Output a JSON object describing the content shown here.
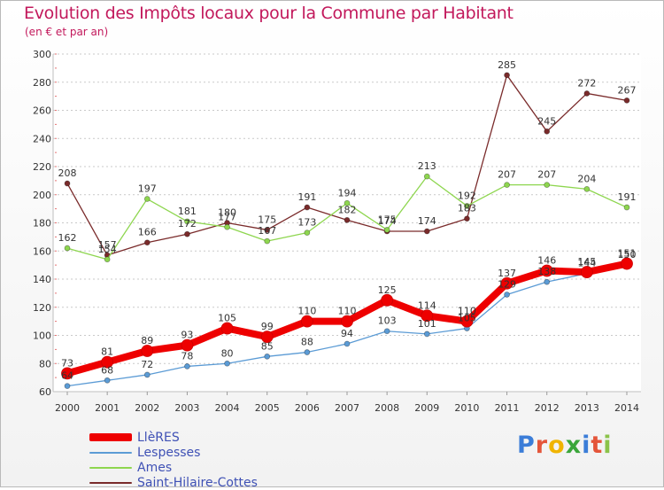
{
  "title": "Evolution des Impôts locaux pour la Commune par Habitant",
  "subtitle": "(en € et par an)",
  "logo": {
    "letters": [
      "P",
      "r",
      "o",
      "x",
      "i",
      "t",
      "i"
    ],
    "colors": [
      "#3b7dd8",
      "#e4553a",
      "#f0b400",
      "#3aa63a",
      "#3b7dd8",
      "#e4553a",
      "#8bc34a"
    ]
  },
  "chart_data": {
    "type": "line",
    "x": [
      "2000",
      "2001",
      "2002",
      "2003",
      "2004",
      "2005",
      "2006",
      "2007",
      "2008",
      "2009",
      "2010",
      "2011",
      "2012",
      "2013",
      "2014"
    ],
    "ylim": [
      60,
      300
    ],
    "yticks": [
      "60",
      "80",
      "100",
      "120",
      "140",
      "160",
      "180",
      "200",
      "220",
      "240",
      "260",
      "280",
      "300"
    ],
    "grid": "horizontal dashed",
    "legend_position": "bottom-left",
    "series": [
      {
        "name": "LlèRES",
        "color": "#ee0000",
        "values": [
          73,
          81,
          89,
          93,
          105,
          99,
          110,
          110,
          125,
          114,
          110,
          137,
          146,
          145,
          151
        ],
        "labels": [
          "73",
          "81",
          "89",
          "93",
          "105",
          "99",
          "110",
          "110",
          "125",
          "114",
          "110",
          "137",
          "146",
          "145",
          "151"
        ]
      },
      {
        "name": "Lespesses",
        "color": "#5b9bd5",
        "values": [
          64,
          68,
          72,
          78,
          80,
          85,
          88,
          94,
          103,
          101,
          105,
          129,
          138,
          144,
          150
        ],
        "labels": [
          "64",
          "68",
          "72",
          "78",
          "80",
          "85",
          "88",
          "94",
          "103",
          "101",
          "105",
          "129",
          "138",
          "144",
          "150"
        ]
      },
      {
        "name": "Ames",
        "color": "#8ed64f",
        "values": [
          162,
          154,
          197,
          181,
          177,
          167,
          173,
          194,
          175,
          213,
          192,
          207,
          207,
          204,
          191
        ],
        "labels": [
          "162",
          "154",
          "197",
          "181",
          "177",
          "167",
          "173",
          "194",
          "175",
          "213",
          "192",
          "207",
          "207",
          "204",
          "191"
        ]
      },
      {
        "name": "Saint-Hilaire-Cottes",
        "color": "#7a2b2b",
        "values": [
          208,
          157,
          166,
          172,
          180,
          175,
          191,
          182,
          174,
          174,
          183,
          285,
          245,
          272,
          267
        ],
        "labels": [
          "208",
          "157",
          "166",
          "172",
          "180",
          "175",
          "191",
          "182",
          "174",
          "174",
          "183",
          "285",
          "245",
          "272",
          "267"
        ]
      }
    ]
  }
}
